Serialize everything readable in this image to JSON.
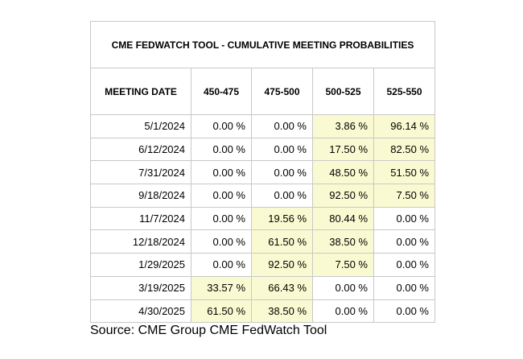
{
  "table": {
    "title": "CME FEDWATCH TOOL - CUMULATIVE MEETING PROBABILITIES",
    "header": [
      "MEETING DATE",
      "450-475",
      "475-500",
      "500-525",
      "525-550"
    ],
    "highlight_color": "#fafad2",
    "rows": [
      {
        "cells": [
          "5/1/2024",
          "0.00 %",
          "0.00 %",
          "3.86 %",
          "96.14 %"
        ],
        "highlight": [
          3,
          4
        ]
      },
      {
        "cells": [
          "6/12/2024",
          "0.00 %",
          "0.00 %",
          "17.50 %",
          "82.50 %"
        ],
        "highlight": [
          3,
          4
        ]
      },
      {
        "cells": [
          "7/31/2024",
          "0.00 %",
          "0.00 %",
          "48.50 %",
          "51.50 %"
        ],
        "highlight": [
          3,
          4
        ]
      },
      {
        "cells": [
          "9/18/2024",
          "0.00 %",
          "0.00 %",
          "92.50 %",
          "7.50 %"
        ],
        "highlight": [
          3,
          4
        ]
      },
      {
        "cells": [
          "11/7/2024",
          "0.00 %",
          "19.56 %",
          "80.44 %",
          "0.00 %"
        ],
        "highlight": [
          2,
          3
        ]
      },
      {
        "cells": [
          "12/18/2024",
          "0.00 %",
          "61.50 %",
          "38.50 %",
          "0.00 %"
        ],
        "highlight": [
          2,
          3
        ]
      },
      {
        "cells": [
          "1/29/2025",
          "0.00 %",
          "92.50 %",
          "7.50 %",
          "0.00 %"
        ],
        "highlight": [
          2,
          3
        ]
      },
      {
        "cells": [
          "3/19/2025",
          "33.57 %",
          "66.43 %",
          "0.00 %",
          "0.00 %"
        ],
        "highlight": [
          1,
          2
        ]
      },
      {
        "cells": [
          "4/30/2025",
          "61.50 %",
          "38.50 %",
          "0.00 %",
          "0.00 %"
        ],
        "highlight": [
          1,
          2
        ]
      }
    ]
  },
  "source": "Source: CME Group CME FedWatch Tool"
}
